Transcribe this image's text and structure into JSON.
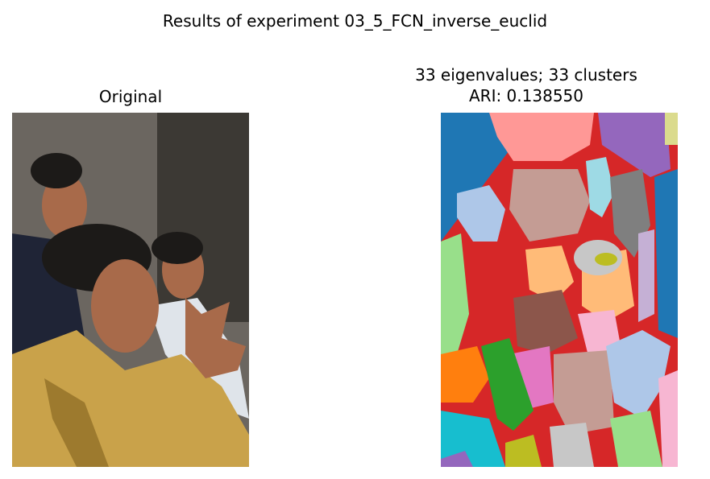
{
  "figure": {
    "suptitle": "Results of experiment 03_5_FCN_inverse_euclid"
  },
  "left_panel": {
    "title": "Original",
    "palette": {
      "robe": "#c9a24a",
      "robe_shadow": "#8a6a22",
      "skin": "#a86a4a",
      "hair": "#1c1a18",
      "suit": "#1f2436",
      "background": "#6b6660",
      "white_garment": "#dfe4ea"
    }
  },
  "right_panel": {
    "title_line1": "33 eigenvalues; 33 clusters",
    "title_line2": "ARI: 0.138550",
    "palette": [
      "#d62728",
      "#1f77b4",
      "#ff9896",
      "#9467bd",
      "#dbdb8d",
      "#aec7e8",
      "#c49c94",
      "#9edae5",
      "#7f7f7f",
      "#c5b0d5",
      "#ffbb78",
      "#8c564b",
      "#98df8a",
      "#e377c2",
      "#f7b6d2",
      "#ff7f0e",
      "#2ca02c",
      "#17becf",
      "#bcbd22",
      "#c7c7c7"
    ]
  }
}
